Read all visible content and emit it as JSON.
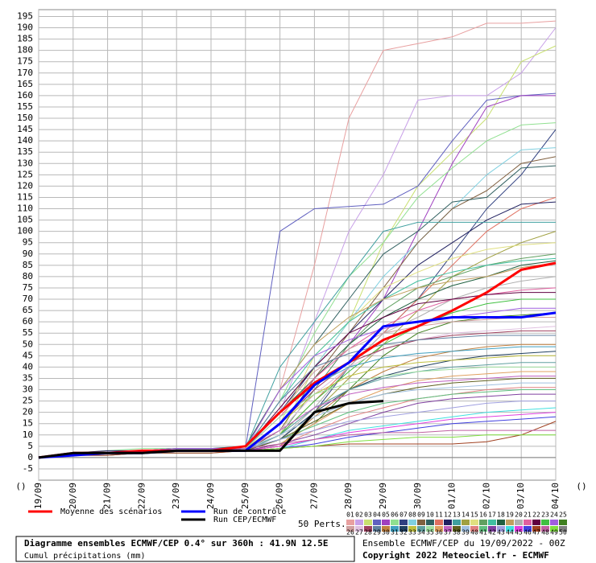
{
  "chart_data": {
    "type": "line",
    "title": "Diagramme ensembles ECMWF/CEP 0.4° sur 360h : 41.9N 12.5E",
    "subtitle": "Cumul précipitations (mm)",
    "ensemble_label": "50 Perts.",
    "run_info": "Ensemble ECMWF/CEP du 19/09/2022 - 00Z",
    "copyright": "Copyright 2022 Meteociel.fr - ECMWF",
    "x_axis_end_labels": [
      "()",
      "()"
    ],
    "categories": [
      "19/09",
      "20/09",
      "21/09",
      "22/09",
      "23/09",
      "24/09",
      "25/09",
      "26/09",
      "27/09",
      "28/09",
      "29/09",
      "30/09",
      "01/10",
      "02/10",
      "03/10",
      "04/10"
    ],
    "ylim": [
      -10,
      198
    ],
    "yticks": [
      -5,
      0,
      5,
      10,
      15,
      20,
      25,
      30,
      35,
      40,
      45,
      50,
      55,
      60,
      65,
      70,
      75,
      80,
      85,
      90,
      95,
      100,
      105,
      110,
      115,
      120,
      125,
      130,
      135,
      140,
      145,
      150,
      155,
      160,
      165,
      170,
      175,
      180,
      185,
      190,
      195
    ],
    "grid": true,
    "series": [
      {
        "name": "Moyenne des scénarios",
        "color": "#ff0000",
        "values": [
          0,
          2,
          2,
          3,
          3,
          3,
          5,
          20,
          33,
          42,
          52,
          58,
          65,
          73,
          83,
          86
        ]
      },
      {
        "name": "Run de contrôle",
        "color": "#0000ff",
        "values": [
          0,
          1,
          2,
          2,
          3,
          3,
          3,
          15,
          32,
          42,
          58,
          60,
          62,
          62,
          62,
          64
        ]
      },
      {
        "name": "Run CEP/ECMWF",
        "color": "#000000",
        "values": [
          0,
          2,
          2,
          2,
          3,
          3,
          3,
          3,
          20,
          24,
          25,
          null,
          null,
          null,
          null,
          null
        ]
      },
      {
        "name": "01",
        "color": "#e8a0a0",
        "values": [
          0,
          1,
          2,
          3,
          3,
          3,
          4,
          30,
          85,
          150,
          180,
          183,
          186,
          192,
          192,
          193
        ]
      },
      {
        "name": "02",
        "color": "#c8a0e8",
        "values": [
          0,
          1,
          2,
          3,
          4,
          4,
          5,
          20,
          60,
          100,
          125,
          158,
          160,
          160,
          170,
          190
        ]
      },
      {
        "name": "03",
        "color": "#c8e070",
        "values": [
          0,
          1,
          2,
          2,
          3,
          3,
          4,
          10,
          40,
          60,
          95,
          120,
          135,
          150,
          175,
          182
        ]
      },
      {
        "name": "04",
        "color": "#6060c0",
        "values": [
          0,
          1,
          2,
          3,
          3,
          3,
          4,
          100,
          110,
          111,
          112,
          120,
          140,
          158,
          160,
          161
        ]
      },
      {
        "name": "05",
        "color": "#a040c0",
        "values": [
          0,
          1,
          1,
          2,
          3,
          3,
          3,
          15,
          30,
          50,
          70,
          100,
          130,
          155,
          160,
          160
        ]
      },
      {
        "name": "06",
        "color": "#90e090",
        "values": [
          0,
          2,
          3,
          4,
          4,
          4,
          4,
          25,
          55,
          80,
          95,
          115,
          128,
          140,
          147,
          148
        ]
      },
      {
        "name": "07",
        "color": "#304080",
        "values": [
          0,
          1,
          2,
          2,
          3,
          3,
          3,
          8,
          20,
          40,
          55,
          70,
          90,
          110,
          125,
          145
        ]
      },
      {
        "name": "08",
        "color": "#80d0e0",
        "values": [
          0,
          1,
          2,
          3,
          3,
          3,
          4,
          20,
          40,
          60,
          80,
          95,
          110,
          125,
          136,
          137
        ]
      },
      {
        "name": "09",
        "color": "#806040",
        "values": [
          0,
          1,
          2,
          2,
          3,
          3,
          3,
          12,
          35,
          55,
          75,
          95,
          110,
          118,
          130,
          133
        ]
      },
      {
        "name": "10",
        "color": "#306060",
        "values": [
          0,
          1,
          2,
          3,
          4,
          4,
          5,
          30,
          50,
          70,
          90,
          100,
          113,
          115,
          128,
          129
        ]
      },
      {
        "name": "11",
        "color": "#e07060",
        "values": [
          0,
          1,
          2,
          2,
          3,
          3,
          4,
          10,
          25,
          40,
          55,
          70,
          85,
          100,
          110,
          115
        ]
      },
      {
        "name": "12",
        "color": "#202060",
        "values": [
          0,
          2,
          3,
          3,
          4,
          4,
          4,
          20,
          40,
          55,
          70,
          85,
          95,
          105,
          112,
          113
        ]
      },
      {
        "name": "13",
        "color": "#40a0a0",
        "values": [
          0,
          1,
          2,
          3,
          3,
          3,
          4,
          40,
          60,
          80,
          100,
          104,
          104,
          104,
          104,
          104
        ]
      },
      {
        "name": "14",
        "color": "#a0a040",
        "values": [
          0,
          1,
          2,
          2,
          3,
          3,
          3,
          5,
          20,
          35,
          50,
          65,
          80,
          88,
          95,
          100
        ]
      },
      {
        "name": "15",
        "color": "#e0e080",
        "values": [
          0,
          1,
          2,
          3,
          3,
          3,
          4,
          15,
          45,
          60,
          75,
          82,
          88,
          92,
          94,
          95
        ]
      },
      {
        "name": "16",
        "color": "#60a060",
        "values": [
          0,
          1,
          1,
          2,
          2,
          2,
          3,
          10,
          30,
          50,
          65,
          75,
          80,
          85,
          88,
          90
        ]
      },
      {
        "name": "17",
        "color": "#40c0a0",
        "values": [
          0,
          1,
          2,
          3,
          3,
          3,
          4,
          25,
          45,
          60,
          70,
          78,
          82,
          85,
          87,
          88
        ]
      },
      {
        "name": "18",
        "color": "#206040",
        "values": [
          0,
          2,
          2,
          3,
          3,
          3,
          4,
          20,
          35,
          50,
          62,
          70,
          76,
          80,
          85,
          87
        ]
      },
      {
        "name": "19",
        "color": "#c0a060",
        "values": [
          0,
          1,
          2,
          2,
          3,
          3,
          4,
          30,
          50,
          62,
          70,
          75,
          78,
          80,
          84,
          86
        ]
      },
      {
        "name": "20",
        "color": "#b0b0b0",
        "values": [
          0,
          1,
          2,
          3,
          3,
          3,
          3,
          8,
          22,
          40,
          55,
          62,
          70,
          75,
          78,
          80
        ]
      },
      {
        "name": "21",
        "color": "#e060a0",
        "values": [
          0,
          1,
          2,
          2,
          3,
          3,
          4,
          18,
          35,
          48,
          58,
          65,
          70,
          72,
          74,
          75
        ]
      },
      {
        "name": "22",
        "color": "#600040",
        "values": [
          0,
          1,
          2,
          3,
          3,
          3,
          4,
          22,
          40,
          55,
          62,
          68,
          70,
          72,
          73,
          73
        ]
      },
      {
        "name": "23",
        "color": "#40c040",
        "values": [
          0,
          1,
          2,
          2,
          3,
          3,
          3,
          10,
          25,
          38,
          50,
          58,
          64,
          68,
          70,
          70
        ]
      },
      {
        "name": "24",
        "color": "#a060e0",
        "values": [
          0,
          1,
          2,
          3,
          4,
          4,
          4,
          30,
          45,
          52,
          57,
          60,
          62,
          64,
          66,
          66
        ]
      },
      {
        "name": "25",
        "color": "#408020",
        "values": [
          0,
          1,
          2,
          2,
          3,
          3,
          3,
          6,
          15,
          30,
          45,
          55,
          60,
          62,
          63,
          64
        ]
      },
      {
        "name": "26",
        "color": "#d0a0a0",
        "values": [
          0,
          1,
          2,
          3,
          3,
          3,
          4,
          20,
          38,
          48,
          55,
          58,
          60,
          61,
          62,
          62
        ]
      },
      {
        "name": "27",
        "color": "#e0c0e0",
        "values": [
          0,
          1,
          2,
          2,
          3,
          3,
          4,
          12,
          28,
          40,
          48,
          52,
          55,
          56,
          57,
          58
        ]
      },
      {
        "name": "28",
        "color": "#a04060",
        "values": [
          0,
          1,
          2,
          3,
          3,
          3,
          3,
          15,
          30,
          42,
          48,
          52,
          54,
          55,
          56,
          56
        ]
      },
      {
        "name": "29",
        "color": "#6080a0",
        "values": [
          0,
          2,
          2,
          3,
          3,
          3,
          4,
          25,
          40,
          46,
          50,
          52,
          53,
          54,
          54,
          54
        ]
      },
      {
        "name": "30",
        "color": "#c08040",
        "values": [
          0,
          1,
          2,
          2,
          3,
          3,
          3,
          5,
          18,
          30,
          38,
          44,
          47,
          49,
          50,
          50
        ]
      },
      {
        "name": "31",
        "color": "#40a0c0",
        "values": [
          0,
          1,
          2,
          3,
          3,
          3,
          4,
          20,
          32,
          40,
          44,
          46,
          47,
          48,
          49,
          49
        ]
      },
      {
        "name": "32",
        "color": "#204060",
        "values": [
          0,
          1,
          2,
          2,
          3,
          3,
          3,
          8,
          20,
          30,
          36,
          40,
          43,
          45,
          46,
          47
        ]
      },
      {
        "name": "33",
        "color": "#c0c040",
        "values": [
          0,
          1,
          2,
          3,
          3,
          3,
          4,
          15,
          28,
          36,
          40,
          42,
          43,
          44,
          45,
          45
        ]
      },
      {
        "name": "34",
        "color": "#60a0a0",
        "values": [
          0,
          1,
          2,
          2,
          3,
          3,
          3,
          10,
          22,
          30,
          35,
          38,
          40,
          41,
          42,
          42
        ]
      },
      {
        "name": "35",
        "color": "#a0e0a0",
        "values": [
          0,
          1,
          2,
          3,
          3,
          3,
          4,
          18,
          28,
          33,
          36,
          38,
          39,
          40,
          40,
          40
        ]
      },
      {
        "name": "36",
        "color": "#e0a060",
        "values": [
          0,
          1,
          2,
          2,
          3,
          3,
          3,
          6,
          15,
          24,
          30,
          34,
          36,
          37,
          38,
          38
        ]
      },
      {
        "name": "37",
        "color": "#c060c0",
        "values": [
          0,
          1,
          2,
          3,
          3,
          3,
          4,
          12,
          22,
          28,
          31,
          33,
          34,
          35,
          36,
          36
        ]
      },
      {
        "name": "38",
        "color": "#606020",
        "values": [
          0,
          1,
          2,
          2,
          3,
          3,
          3,
          8,
          16,
          24,
          28,
          31,
          33,
          34,
          35,
          35
        ]
      },
      {
        "name": "39",
        "color": "#a0c0e0",
        "values": [
          0,
          1,
          2,
          3,
          3,
          3,
          4,
          10,
          18,
          24,
          28,
          30,
          31,
          32,
          33,
          33
        ]
      },
      {
        "name": "40",
        "color": "#e08080",
        "values": [
          0,
          1,
          2,
          2,
          3,
          3,
          3,
          5,
          12,
          18,
          22,
          26,
          28,
          30,
          31,
          31
        ]
      },
      {
        "name": "41",
        "color": "#60c080",
        "values": [
          0,
          1,
          2,
          3,
          3,
          3,
          4,
          8,
          14,
          20,
          24,
          26,
          28,
          29,
          30,
          30
        ]
      },
      {
        "name": "42",
        "color": "#8040a0",
        "values": [
          0,
          1,
          2,
          2,
          3,
          3,
          3,
          6,
          10,
          15,
          20,
          24,
          26,
          27,
          28,
          28
        ]
      },
      {
        "name": "43",
        "color": "#a0a0e0",
        "values": [
          0,
          1,
          2,
          3,
          3,
          3,
          4,
          8,
          12,
          16,
          18,
          20,
          22,
          24,
          25,
          25
        ]
      },
      {
        "name": "44",
        "color": "#40e0e0",
        "values": [
          0,
          1,
          2,
          2,
          3,
          3,
          3,
          4,
          8,
          12,
          14,
          16,
          18,
          20,
          21,
          22
        ]
      },
      {
        "name": "45",
        "color": "#e040e0",
        "values": [
          0,
          1,
          2,
          3,
          3,
          3,
          3,
          5,
          8,
          11,
          13,
          15,
          17,
          18,
          19,
          20
        ]
      },
      {
        "name": "46",
        "color": "#4040e0",
        "values": [
          0,
          1,
          2,
          2,
          3,
          3,
          3,
          4,
          6,
          9,
          11,
          13,
          15,
          16,
          17,
          18
        ]
      },
      {
        "name": "47",
        "color": "#a04020",
        "values": [
          0,
          1,
          1,
          2,
          2,
          2,
          3,
          4,
          5,
          6,
          6,
          6,
          6,
          7,
          10,
          16
        ]
      },
      {
        "name": "48",
        "color": "#c060a0",
        "values": [
          0,
          1,
          2,
          3,
          3,
          3,
          4,
          6,
          8,
          10,
          11,
          11,
          12,
          12,
          12,
          12
        ]
      },
      {
        "name": "49",
        "color": "#80e040",
        "values": [
          0,
          1,
          2,
          2,
          3,
          3,
          3,
          4,
          5,
          7,
          8,
          9,
          9,
          10,
          10,
          10
        ]
      },
      {
        "name": "50",
        "color": "#808080",
        "values": [
          0,
          0,
          0,
          0,
          0,
          0,
          0,
          0,
          0,
          0,
          0,
          0,
          0,
          0,
          0,
          0
        ]
      }
    ]
  }
}
